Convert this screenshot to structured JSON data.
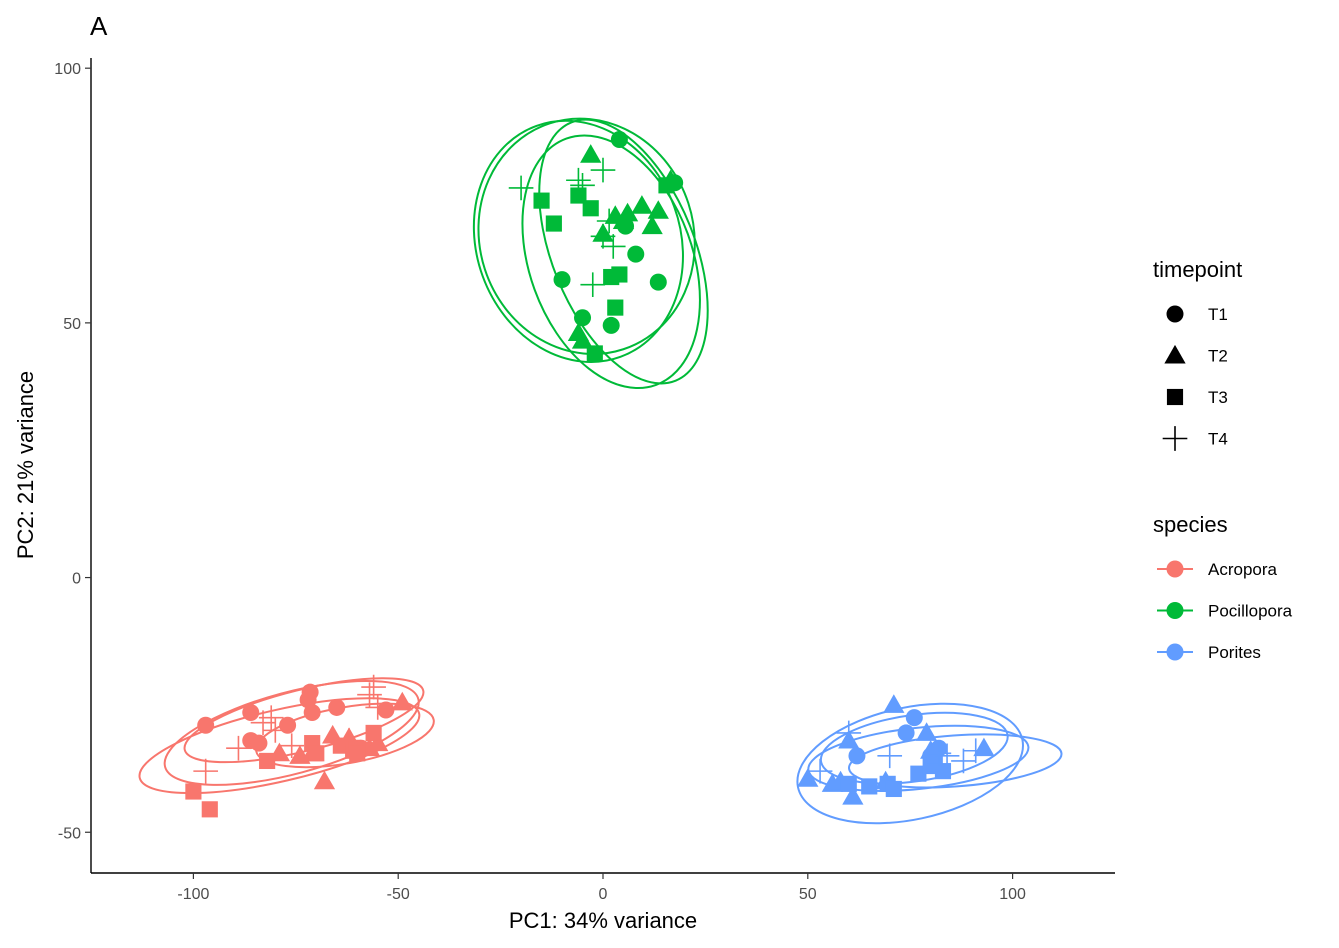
{
  "chart_data": {
    "type": "scatter",
    "panel_tag": "A",
    "xlabel": "PC1: 34% variance",
    "ylabel": "PC2: 21% variance",
    "xlim": [
      -125,
      125
    ],
    "ylim": [
      -58,
      102
    ],
    "x_ticks": [
      -100,
      -50,
      0,
      50,
      100
    ],
    "y_ticks": [
      -50,
      0,
      50,
      100
    ],
    "x_tick_labels": [
      "-100",
      "-50",
      "0",
      "50",
      "100"
    ],
    "y_tick_labels": [
      "-50",
      "0",
      "50",
      "100"
    ],
    "grid": false,
    "legend_position": "right",
    "shape_legend": {
      "title": "timepoint",
      "items": [
        {
          "label": "T1",
          "shape": "circle"
        },
        {
          "label": "T2",
          "shape": "triangle"
        },
        {
          "label": "T3",
          "shape": "square"
        },
        {
          "label": "T4",
          "shape": "plus"
        }
      ]
    },
    "color_legend": {
      "title": "species",
      "items": [
        {
          "label": "Acropora",
          "color": "#F8766D"
        },
        {
          "label": "Pocillopora",
          "color": "#00BA38"
        },
        {
          "label": "Porites",
          "color": "#619CFF"
        }
      ]
    },
    "series": [
      {
        "species": "Acropora",
        "color": "#F8766D",
        "points": {
          "T1": [
            [
              -97,
              -29
            ],
            [
              -86,
              -26.5
            ],
            [
              -86,
              -32
            ],
            [
              -84,
              -32.5
            ],
            [
              -77,
              -29
            ],
            [
              -72,
              -24
            ],
            [
              -71.5,
              -22.5
            ],
            [
              -71,
              -26.5
            ],
            [
              -65,
              -25.5
            ],
            [
              -59,
              -33.5
            ],
            [
              -53,
              -26
            ]
          ],
          "T2": [
            [
              -79,
              -34.5
            ],
            [
              -74,
              -35
            ],
            [
              -71,
              -34.5
            ],
            [
              -68,
              -40
            ],
            [
              -66,
              -31
            ],
            [
              -62,
              -31.5
            ],
            [
              -57,
              -33.5
            ],
            [
              -55,
              -32.5
            ],
            [
              -49,
              -24.5
            ]
          ],
          "T3": [
            [
              -100,
              -42
            ],
            [
              -96,
              -45.5
            ],
            [
              -82,
              -36
            ],
            [
              -71,
              -32.5
            ],
            [
              -70,
              -34.5
            ],
            [
              -64,
              -33
            ],
            [
              -61,
              -34
            ],
            [
              -60,
              -34.5
            ],
            [
              -56,
              -30.5
            ]
          ],
          "T4": [
            [
              -97,
              -38
            ],
            [
              -89,
              -33.5
            ],
            [
              -83,
              -28.5
            ],
            [
              -81,
              -27.5
            ],
            [
              -80,
              -30
            ],
            [
              -76,
              -33
            ],
            [
              -62,
              -32
            ],
            [
              -57,
              -23
            ],
            [
              -56,
              -21.5
            ],
            [
              -55,
              -25.5
            ]
          ]
        },
        "ellipses": [
          {
            "cx": -76,
            "cy": -30.5,
            "rx": 32,
            "ry": 8,
            "angle": 15
          },
          {
            "cx": -79,
            "cy": -33,
            "rx": 35,
            "ry": 7,
            "angle": 13
          },
          {
            "cx": -63,
            "cy": -31,
            "rx": 22,
            "ry": 5.5,
            "angle": 10
          },
          {
            "cx": -73,
            "cy": -28,
            "rx": 30,
            "ry": 6,
            "angle": 14
          }
        ]
      },
      {
        "species": "Pocillopora",
        "color": "#00BA38",
        "points": {
          "T1": [
            [
              4,
              86
            ],
            [
              -10,
              58.5
            ],
            [
              -5,
              51
            ],
            [
              2,
              49.5
            ],
            [
              5.5,
              69
            ],
            [
              8,
              63.5
            ],
            [
              13.5,
              58
            ],
            [
              17.5,
              77.5
            ]
          ],
          "T2": [
            [
              -3,
              83
            ],
            [
              -6,
              48
            ],
            [
              -5,
              46.5
            ],
            [
              0,
              67.5
            ],
            [
              3,
              71
            ],
            [
              5,
              70
            ],
            [
              6,
              71.5
            ],
            [
              9.5,
              73
            ],
            [
              12,
              69
            ],
            [
              13.5,
              72
            ],
            [
              16.5,
              78
            ]
          ],
          "T3": [
            [
              -15,
              74
            ],
            [
              -12,
              69.5
            ],
            [
              -6,
              75
            ],
            [
              -3,
              72.5
            ],
            [
              2,
              59
            ],
            [
              3,
              53
            ],
            [
              4,
              59.5
            ],
            [
              15.5,
              77
            ],
            [
              -2,
              44
            ]
          ],
          "T4": [
            [
              -20,
              76.5
            ],
            [
              -6,
              78
            ],
            [
              -5,
              77
            ],
            [
              0,
              80
            ],
            [
              1.5,
              70
            ],
            [
              -2.5,
              57.5
            ],
            [
              0,
              67
            ],
            [
              2.5,
              65
            ]
          ]
        },
        "ellipses": [
          {
            "cx": -6,
            "cy": 66,
            "rx": 30,
            "ry": 20,
            "angle": -70
          },
          {
            "cx": -4,
            "cy": 67,
            "rx": 29,
            "ry": 21,
            "angle": -72
          },
          {
            "cx": 5,
            "cy": 64,
            "rx": 34,
            "ry": 14,
            "angle": -68
          },
          {
            "cx": 2,
            "cy": 62,
            "rx": 32,
            "ry": 16,
            "angle": -70
          }
        ]
      },
      {
        "species": "Porites",
        "color": "#619CFF",
        "points": {
          "T1": [
            [
              62,
              -35
            ],
            [
              74,
              -30.5
            ],
            [
              76,
              -27.5
            ],
            [
              82,
              -33.5
            ],
            [
              80,
              -35
            ]
          ],
          "T2": [
            [
              50,
              -39.5
            ],
            [
              56,
              -40.5
            ],
            [
              58,
              -40
            ],
            [
              60,
              -32
            ],
            [
              61,
              -43
            ],
            [
              69,
              -40
            ],
            [
              71,
              -25
            ],
            [
              79,
              -30.5
            ],
            [
              93,
              -33.5
            ],
            [
              80,
              -34
            ]
          ],
          "T3": [
            [
              60,
              -40.5
            ],
            [
              65,
              -41
            ],
            [
              69.5,
              -40.5
            ],
            [
              71,
              -41.5
            ],
            [
              77,
              -38.5
            ],
            [
              80,
              -37
            ],
            [
              83,
              -38
            ],
            [
              81,
              -35
            ]
          ],
          "T4": [
            [
              53,
              -38
            ],
            [
              60,
              -30.5
            ],
            [
              70,
              -35
            ],
            [
              84,
              -35
            ],
            [
              88,
              -36
            ],
            [
              91,
              -34
            ],
            [
              82,
              -34.5
            ]
          ]
        },
        "ellipses": [
          {
            "cx": 75,
            "cy": -36.5,
            "rx": 28,
            "ry": 11,
            "angle": 12
          },
          {
            "cx": 77,
            "cy": -35.5,
            "rx": 27,
            "ry": 6,
            "angle": 6
          },
          {
            "cx": 76,
            "cy": -33.5,
            "rx": 23,
            "ry": 6.5,
            "angle": 8
          },
          {
            "cx": 86,
            "cy": -36,
            "rx": 26,
            "ry": 5,
            "angle": 4
          }
        ]
      }
    ]
  }
}
